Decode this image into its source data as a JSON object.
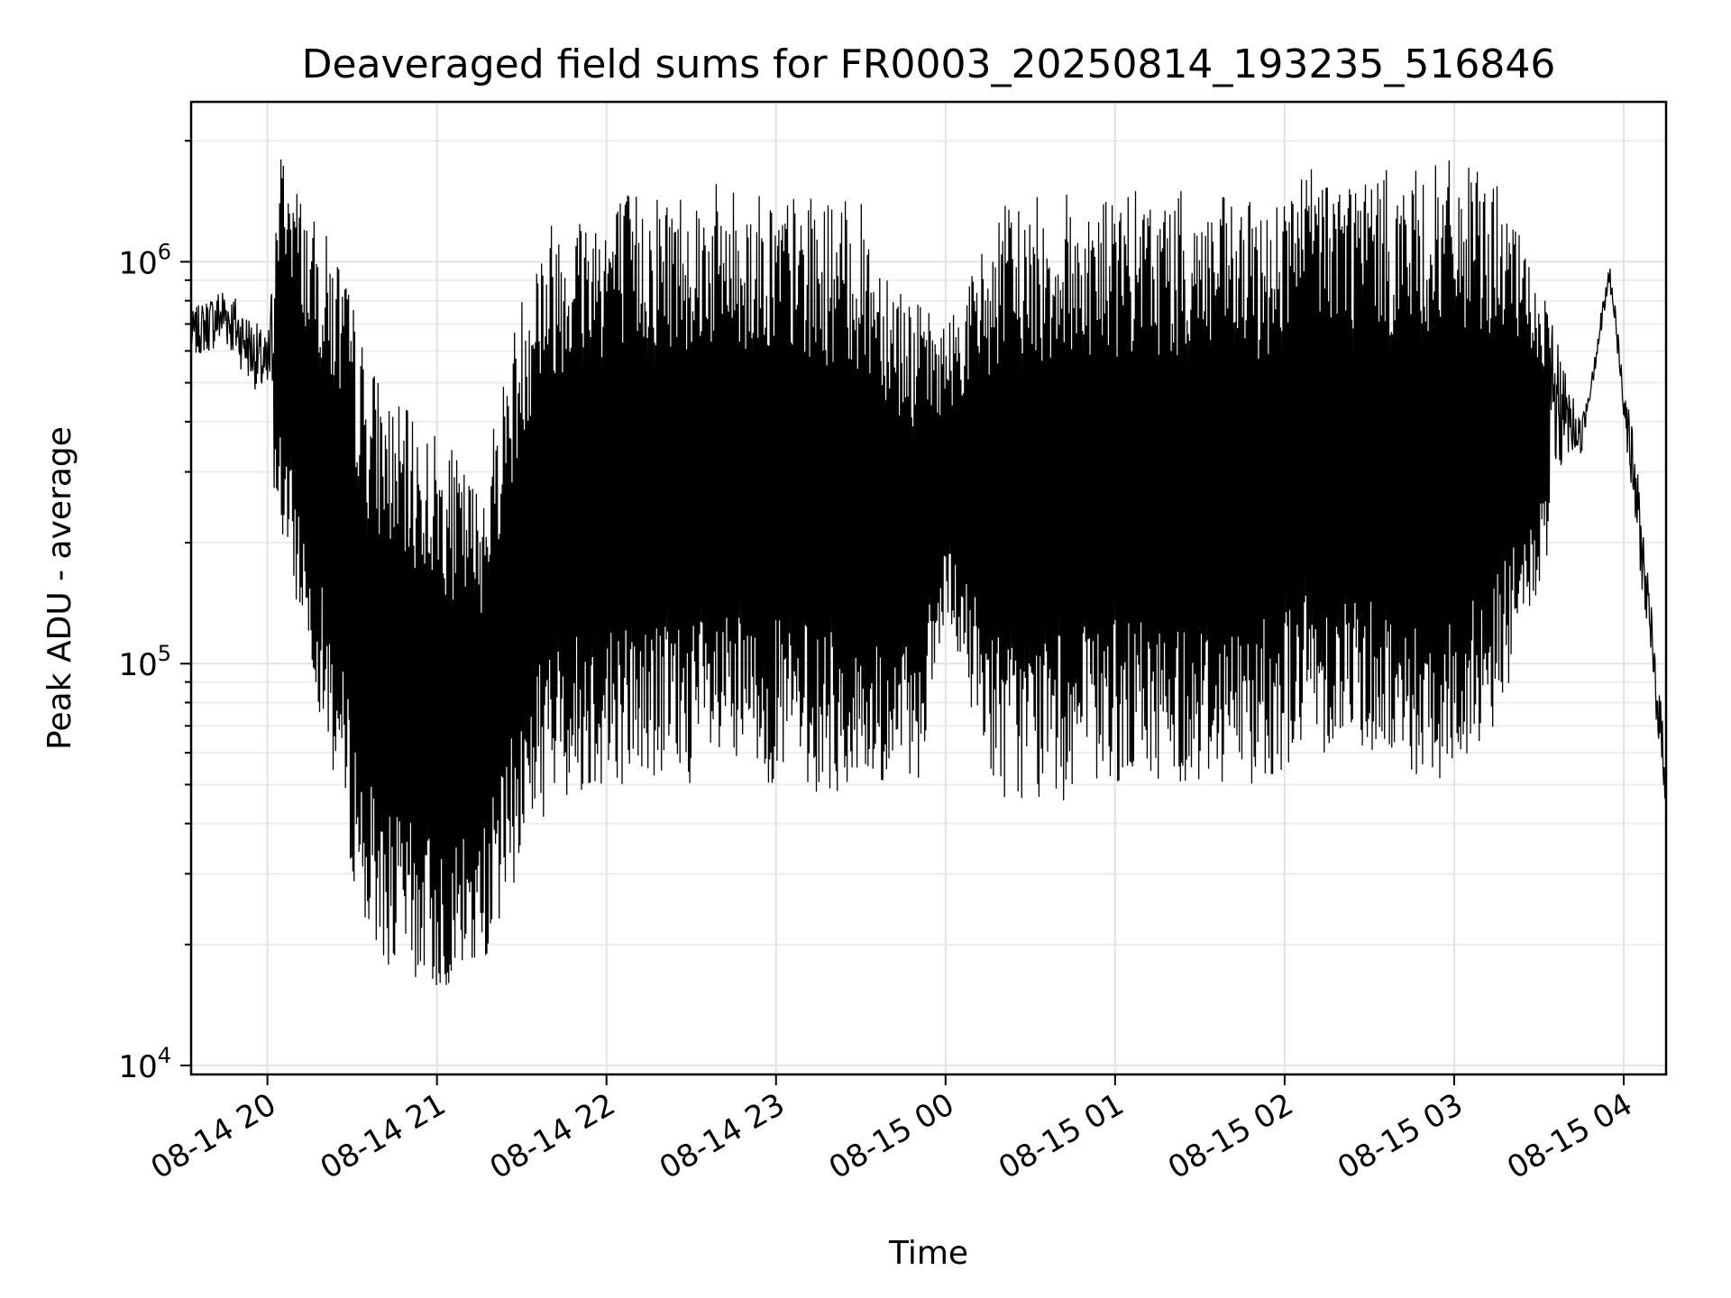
{
  "chart_data": {
    "type": "line",
    "title": "Deaveraged field sums for FR0003_20250814_193235_516846",
    "xlabel": "Time",
    "ylabel": "Peak ADU - average",
    "yscale": "log",
    "ylim": [
      9500,
      2500000
    ],
    "xlim": [
      "2025-08-14 19:33",
      "2025-08-15 04:15"
    ],
    "grid": true,
    "legend": "none",
    "line_color": "#000000",
    "x_ticks": [
      {
        "value": "2025-08-14 20:00",
        "label": "08-14 20"
      },
      {
        "value": "2025-08-14 21:00",
        "label": "08-14 21"
      },
      {
        "value": "2025-08-14 22:00",
        "label": "08-14 22"
      },
      {
        "value": "2025-08-14 23:00",
        "label": "08-14 23"
      },
      {
        "value": "2025-08-15 00:00",
        "label": "08-15 00"
      },
      {
        "value": "2025-08-15 01:00",
        "label": "08-15 01"
      },
      {
        "value": "2025-08-15 02:00",
        "label": "08-15 02"
      },
      {
        "value": "2025-08-15 03:00",
        "label": "08-15 03"
      },
      {
        "value": "2025-08-15 04:00",
        "label": "08-15 04"
      }
    ],
    "y_ticks": [
      {
        "value": 10000,
        "base": "10",
        "exp": "4"
      },
      {
        "value": 100000,
        "base": "10",
        "exp": "5"
      },
      {
        "value": 1000000,
        "base": "10",
        "exp": "6"
      }
    ],
    "series_envelope": {
      "time": [
        "2025-08-14 19:33",
        "2025-08-14 19:45",
        "2025-08-14 20:00",
        "2025-08-14 20:05",
        "2025-08-14 20:15",
        "2025-08-14 20:25",
        "2025-08-14 20:35",
        "2025-08-14 20:45",
        "2025-08-14 21:00",
        "2025-08-14 21:15",
        "2025-08-14 21:25",
        "2025-08-14 21:35",
        "2025-08-14 21:45",
        "2025-08-14 22:00",
        "2025-08-14 22:30",
        "2025-08-14 23:00",
        "2025-08-14 23:30",
        "2025-08-14 23:50",
        "2025-08-15 00:00",
        "2025-08-15 00:20",
        "2025-08-15 00:40",
        "2025-08-15 01:00",
        "2025-08-15 01:30",
        "2025-08-15 01:50",
        "2025-08-15 02:10",
        "2025-08-15 02:30",
        "2025-08-15 02:45",
        "2025-08-15 03:00",
        "2025-08-15 03:15",
        "2025-08-15 03:30",
        "2025-08-15 03:45",
        "2025-08-15 03:55",
        "2025-08-15 04:05",
        "2025-08-15 04:15"
      ],
      "high": [
        750000,
        900000,
        650000,
        2000000,
        1300000,
        1100000,
        600000,
        450000,
        380000,
        280000,
        600000,
        1200000,
        1400000,
        1500000,
        1600000,
        1500000,
        1400000,
        800000,
        700000,
        1400000,
        1500000,
        1500000,
        1500000,
        1400000,
        1800000,
        1700000,
        1700000,
        1800000,
        1600000,
        900000,
        400000,
        1000000,
        300000,
        60000
      ],
      "low": [
        500000,
        500000,
        350000,
        200000,
        100000,
        45000,
        20000,
        17000,
        15000,
        17000,
        25000,
        40000,
        45000,
        50000,
        50000,
        50000,
        45000,
        50000,
        120000,
        45000,
        45000,
        50000,
        50000,
        50000,
        60000,
        60000,
        50000,
        50000,
        70000,
        150000,
        300000,
        800000,
        150000,
        35000
      ]
    }
  }
}
